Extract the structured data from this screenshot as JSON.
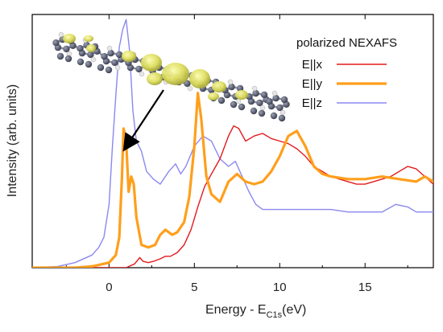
{
  "chart_data": {
    "type": "line",
    "title": "",
    "xlabel": "Energy - E",
    "xlabel_sub": "C1s",
    "xlabel_unit": "(eV)",
    "ylabel": "Intensity (arb. units)",
    "xlim": [
      -4.5,
      19
    ],
    "ylim": [
      0,
      1.0
    ],
    "xticks": [
      "0",
      "5",
      "10",
      "15"
    ],
    "yticks_shown": false,
    "grid": false,
    "legend": {
      "title": "polarized NEXAFS",
      "placement": "top-right"
    },
    "annotation": "arrow from molecular orbital image to E||y peak near 1 eV; molecule inset at top-left",
    "series": [
      {
        "name": "E||x",
        "color": "#e31a1c",
        "x": [
          -4.5,
          1.0,
          1.5,
          1.8,
          2.0,
          2.3,
          2.6,
          3.0,
          3.3,
          3.6,
          4.0,
          4.4,
          4.8,
          5.2,
          5.6,
          6.0,
          6.5,
          7.0,
          7.3,
          7.6,
          8.0,
          8.5,
          9.0,
          9.5,
          10.0,
          10.5,
          11.0,
          11.5,
          12.0,
          12.5,
          13.0,
          13.5,
          14.0,
          14.5,
          15.0,
          15.5,
          16.0,
          16.5,
          17.0,
          17.5,
          18.0,
          18.5,
          19.0
        ],
        "y": [
          0.0,
          0.0,
          0.015,
          0.04,
          0.025,
          0.02,
          0.025,
          0.035,
          0.045,
          0.045,
          0.06,
          0.09,
          0.15,
          0.24,
          0.32,
          0.37,
          0.43,
          0.52,
          0.56,
          0.55,
          0.5,
          0.52,
          0.53,
          0.51,
          0.5,
          0.49,
          0.47,
          0.44,
          0.4,
          0.38,
          0.36,
          0.35,
          0.34,
          0.33,
          0.33,
          0.34,
          0.35,
          0.36,
          0.38,
          0.4,
          0.39,
          0.36,
          0.33
        ]
      },
      {
        "name": "E||y",
        "color": "#ff9f1c",
        "x": [
          -4.5,
          -2.0,
          -1.0,
          0.0,
          0.4,
          0.6,
          0.75,
          0.85,
          1.0,
          1.15,
          1.3,
          1.45,
          1.6,
          1.9,
          2.3,
          2.7,
          3.0,
          3.3,
          3.7,
          4.0,
          4.4,
          4.7,
          5.0,
          5.2,
          5.4,
          5.7,
          6.0,
          6.5,
          7.0,
          7.5,
          8.0,
          8.5,
          9.0,
          9.5,
          10.0,
          10.5,
          11.0,
          11.5,
          12.0,
          12.5,
          13.0,
          14.0,
          15.0,
          16.0,
          17.0,
          18.0,
          18.5,
          19.0
        ],
        "y": [
          0.0,
          0.0,
          0.005,
          0.02,
          0.05,
          0.12,
          0.35,
          0.55,
          0.5,
          0.3,
          0.36,
          0.33,
          0.2,
          0.09,
          0.08,
          0.09,
          0.13,
          0.15,
          0.13,
          0.14,
          0.18,
          0.28,
          0.48,
          0.69,
          0.59,
          0.36,
          0.29,
          0.26,
          0.34,
          0.37,
          0.34,
          0.33,
          0.34,
          0.38,
          0.44,
          0.52,
          0.54,
          0.48,
          0.4,
          0.37,
          0.36,
          0.35,
          0.35,
          0.36,
          0.35,
          0.34,
          0.36,
          0.34
        ]
      },
      {
        "name": "E||z",
        "color": "#8b88ee",
        "x": [
          -4.5,
          -3.0,
          -2.0,
          -1.0,
          -0.6,
          -0.3,
          0.0,
          0.2,
          0.4,
          0.6,
          0.8,
          1.0,
          1.2,
          1.4,
          1.6,
          1.9,
          2.2,
          2.6,
          3.0,
          3.5,
          3.9,
          4.2,
          4.5,
          5.0,
          5.5,
          6.0,
          6.5,
          7.0,
          7.4,
          7.8,
          8.2,
          8.6,
          9.0,
          10.0,
          11.0,
          12.0,
          13.0,
          14.0,
          15.0,
          16.0,
          16.8,
          17.5,
          18.0,
          19.0
        ],
        "y": [
          0.0,
          0.005,
          0.02,
          0.05,
          0.08,
          0.12,
          0.25,
          0.48,
          0.68,
          0.87,
          0.94,
          0.98,
          0.86,
          0.62,
          0.5,
          0.46,
          0.38,
          0.35,
          0.33,
          0.38,
          0.41,
          0.37,
          0.4,
          0.48,
          0.52,
          0.5,
          0.43,
          0.4,
          0.42,
          0.36,
          0.3,
          0.25,
          0.23,
          0.23,
          0.23,
          0.23,
          0.23,
          0.22,
          0.22,
          0.22,
          0.25,
          0.24,
          0.22,
          0.22
        ]
      }
    ]
  },
  "molecule": {
    "highlight_color": "#e8e870",
    "atom_color": "#5a5e6e",
    "hydrogen_color": "#e6e6e6"
  }
}
